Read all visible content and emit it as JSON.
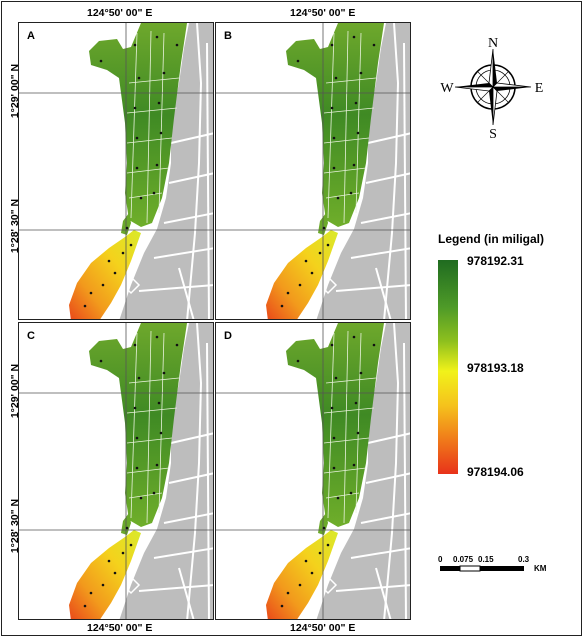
{
  "panels": [
    {
      "label": "A"
    },
    {
      "label": "B"
    },
    {
      "label": "C"
    },
    {
      "label": "D"
    }
  ],
  "coordinates": {
    "longitude": "124°50' 00\" E",
    "latitude_top": "1°29' 00\" N",
    "latitude_bottom": "1°28' 30\" N"
  },
  "compass": {
    "north": "N",
    "south": "S",
    "east": "E",
    "west": "W"
  },
  "legend": {
    "title": "Legend (in miligal)",
    "max_label": "978192.31",
    "mid_label": "978193.18",
    "min_label": "978194.06",
    "color_top": "#1f6b20",
    "color_mid": "#f1f21a",
    "color_bottom": "#e8321a"
  },
  "scale_bar": {
    "ticks": [
      "0",
      "0.075",
      "0.15",
      "0.3"
    ],
    "unit": "KM"
  }
}
